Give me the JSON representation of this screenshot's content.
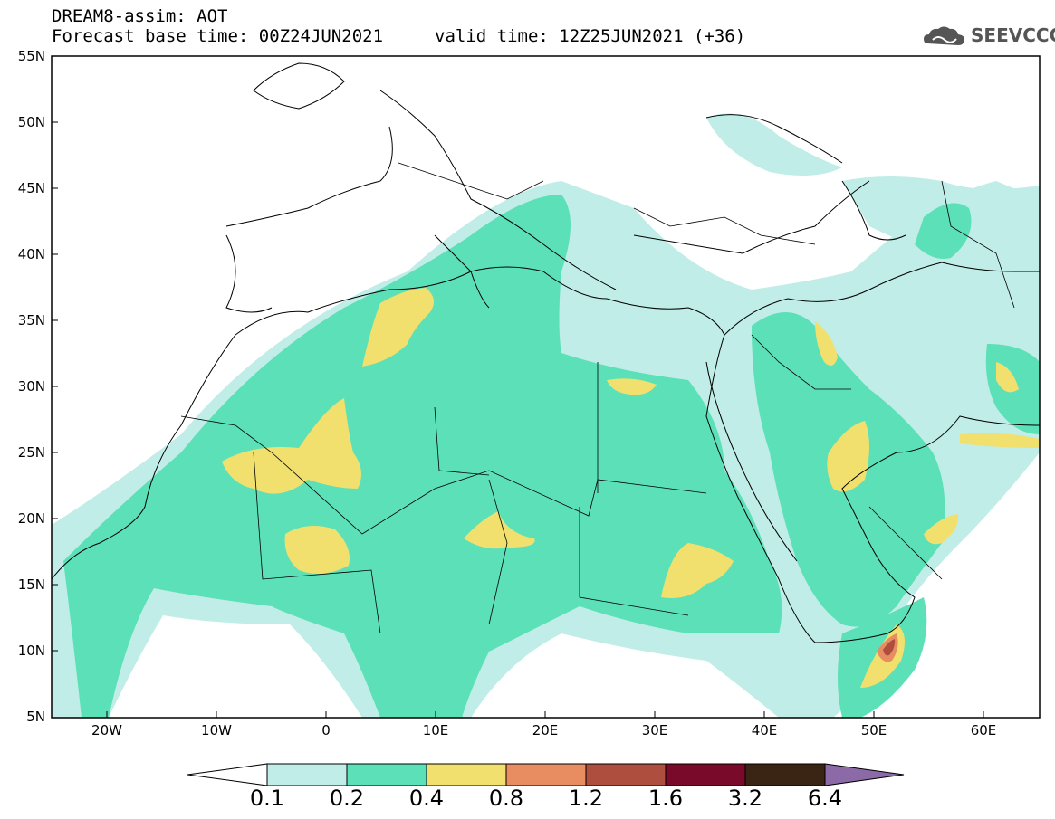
{
  "header": {
    "title_line1": "DREAM8-assim: AOT",
    "title_line2": "Forecast base time: 00Z24JUN2021",
    "valid_time": "valid time: 12Z25JUN2021 (+36)",
    "logo_text": "SEEVCCC",
    "logo_icon": "cloud-logo-icon"
  },
  "map": {
    "projection": "lat-lon",
    "lon_range": [
      -25,
      65
    ],
    "lat_range": [
      5,
      55
    ],
    "lat_ticks": [
      "55N",
      "50N",
      "45N",
      "40N",
      "35N",
      "30N",
      "25N",
      "20N",
      "15N",
      "10N",
      "5N"
    ],
    "lon_ticks": [
      "20W",
      "10W",
      "0",
      "10E",
      "20E",
      "30E",
      "40E",
      "50E",
      "60E"
    ]
  },
  "colorbar": {
    "levels": [
      "0.1",
      "0.2",
      "0.4",
      "0.8",
      "1.2",
      "1.6",
      "3.2",
      "6.4"
    ],
    "colors": [
      "#ffffff",
      "#c0ede7",
      "#5ce0b8",
      "#f2e06e",
      "#e88c62",
      "#ae4e3e",
      "#7a0a2a",
      "#3a2414",
      "#8c6aa8"
    ]
  }
}
